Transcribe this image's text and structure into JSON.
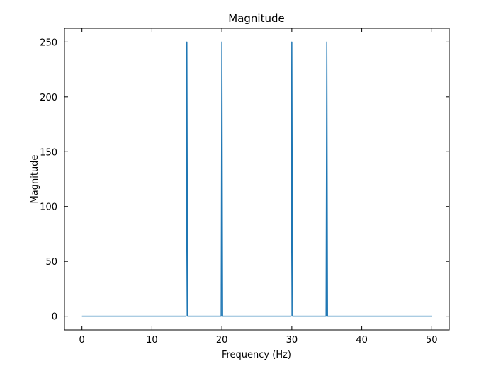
{
  "chart_data": {
    "type": "line",
    "title": "Magnitude",
    "xlabel": "Frequency (Hz)",
    "ylabel": "Magnitude",
    "xlim": [
      -2.5,
      52.5
    ],
    "ylim": [
      -12.5,
      262.5
    ],
    "xticks": [
      0,
      10,
      20,
      30,
      40,
      50
    ],
    "yticks": [
      0,
      50,
      100,
      150,
      200,
      250
    ],
    "grid": false,
    "series": [
      {
        "color": "#1f77b4",
        "x": [
          0,
          14.9,
          15,
          15.1,
          19.9,
          20,
          20.1,
          29.9,
          30,
          30.1,
          34.9,
          35,
          35.1,
          50
        ],
        "y": [
          0,
          0,
          250,
          0,
          0,
          250,
          0,
          0,
          250,
          0,
          0,
          250,
          0,
          0
        ]
      }
    ]
  }
}
